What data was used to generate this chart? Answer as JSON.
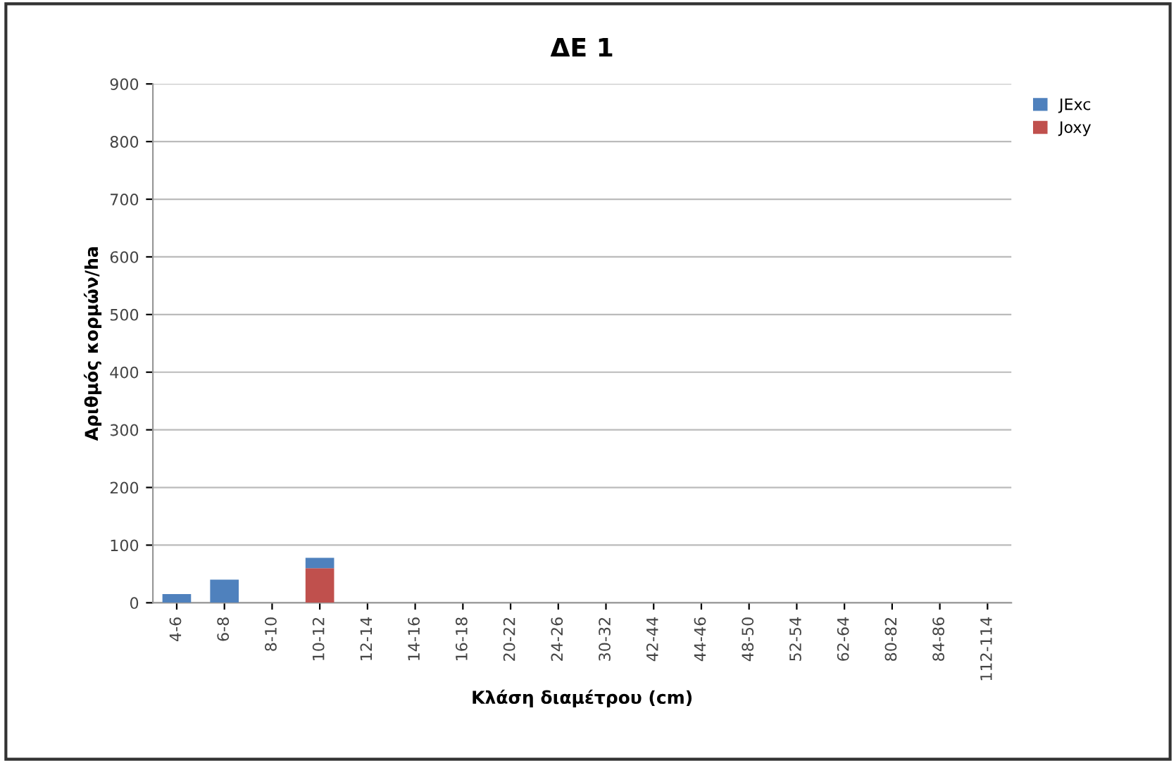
{
  "chart_data": {
    "type": "bar",
    "title": "ΔΕ 1",
    "xlabel": "Κλάση διαμέτρου (cm)",
    "ylabel": "Αριθμός κορμών/ha",
    "categories": [
      "4-6",
      "6-8",
      "8-10",
      "10-12",
      "12-14",
      "14-16",
      "16-18",
      "20-22",
      "24-26",
      "30-32",
      "42-44",
      "44-46",
      "48-50",
      "52-54",
      "62-64",
      "80-82",
      "84-86",
      "112-114"
    ],
    "stacked": true,
    "series": [
      {
        "name": "Joxy",
        "color": "#c0504d",
        "values": [
          0,
          0,
          0,
          60,
          0,
          0,
          0,
          0,
          0,
          0,
          0,
          0,
          0,
          0,
          0,
          0,
          0,
          0
        ]
      },
      {
        "name": "JExc",
        "color": "#4f81bd",
        "values": [
          15,
          40,
          0,
          18,
          0,
          0,
          0,
          0,
          0,
          0,
          0,
          0,
          0,
          0,
          0,
          0,
          0,
          0
        ]
      }
    ],
    "ylim": [
      0,
      900
    ],
    "yticks": [
      0,
      100,
      200,
      300,
      400,
      500,
      600,
      700,
      800,
      900
    ],
    "grid": "y",
    "legend": "right"
  }
}
